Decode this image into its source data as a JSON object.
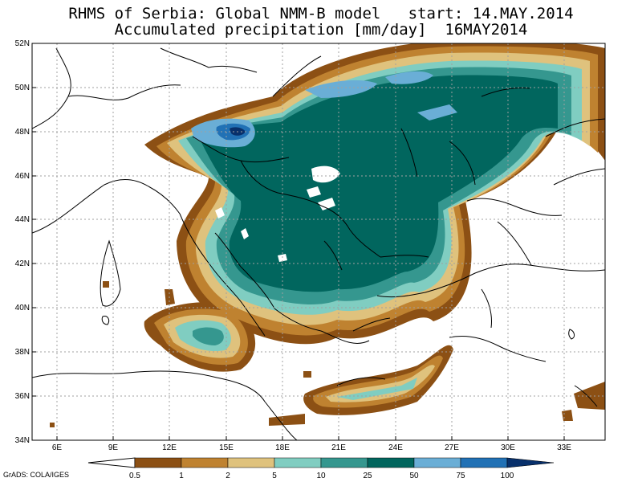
{
  "title": {
    "line1": "RHMS of Serbia: Global NMM-B model   start: 14.MAY.2014",
    "line2": "Accumulated precipitation [mm/day]  16MAY2014"
  },
  "axes": {
    "lat_labels": [
      "52N",
      "50N",
      "48N",
      "46N",
      "44N",
      "42N",
      "40N",
      "38N",
      "36N",
      "34N"
    ],
    "lon_labels": [
      "6E",
      "9E",
      "12E",
      "15E",
      "18E",
      "21E",
      "24E",
      "27E",
      "30E",
      "33E"
    ]
  },
  "colorbar": {
    "levels": [
      "0.5",
      "1",
      "2",
      "5",
      "10",
      "25",
      "50",
      "75",
      "100"
    ],
    "colors": [
      "#8c5014",
      "#bf8230",
      "#dfc27d",
      "#80cdc1",
      "#35978f",
      "#01665e",
      "#6aaed6",
      "#2171b5",
      "#08306b"
    ]
  },
  "credit": "GrADS: COLA/IGES"
}
